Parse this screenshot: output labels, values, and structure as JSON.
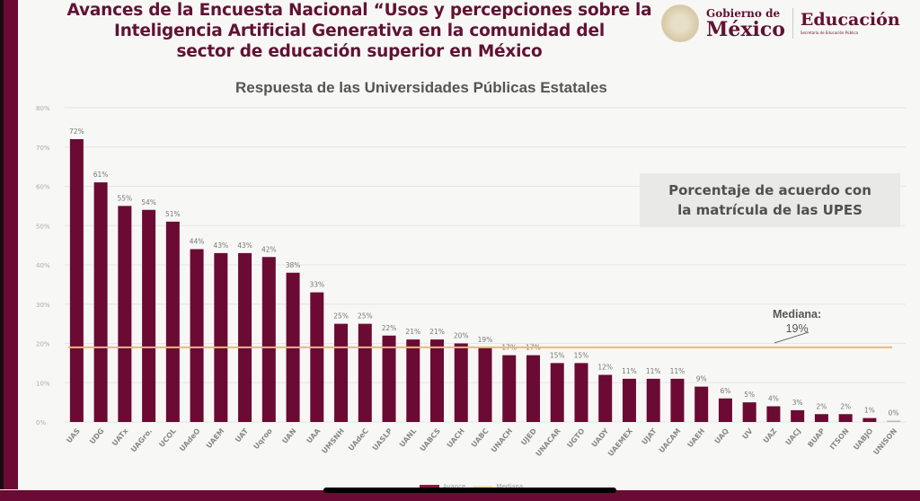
{
  "slide": {
    "title": "Avances de la Encuesta Nacional “Usos y percepciones sobre la Inteligencia Artificial Generativa en la comunidad del sector de educación superior en México",
    "title_lines": [
      "Avances de la Encuesta Nacional “Usos y percepciones sobre la",
      "Inteligencia Artificial Generativa en la comunidad del",
      "sector de educación superior en México"
    ]
  },
  "logos": {
    "gobierno_line1": "Gobierno de",
    "gobierno_line2": "México",
    "educacion": "Educación",
    "educacion_sub": "Secretaría de Educación Pública",
    "seal_icon": "coat-of-arms-icon"
  },
  "note": {
    "line1": "Porcentaje de acuerdo con",
    "line2": "la matrícula de las UPES"
  },
  "median": {
    "label": "Mediana:",
    "value_label": "19%"
  },
  "colors": {
    "bar": "#6b0a32",
    "median_line": "#e8b97a",
    "brand": "#611232"
  },
  "chart_data": {
    "type": "bar",
    "title": "Respuesta de las Universidades Públicas Estatales",
    "xlabel": "",
    "ylabel": "",
    "ylim": [
      0,
      80
    ],
    "yticks": [
      0,
      10,
      20,
      30,
      40,
      50,
      60,
      70,
      80
    ],
    "ytick_labels": [
      "0%",
      "10%",
      "20%",
      "30%",
      "40%",
      "50%",
      "60%",
      "70%",
      "80%"
    ],
    "grid": true,
    "categories": [
      "UAS",
      "UDG",
      "UATx",
      "UAGro.",
      "UCOL",
      "UAdeO",
      "UAEM",
      "UAT",
      "Uqroo",
      "UAN",
      "UAA",
      "UMSNH",
      "UAdeC",
      "UASLP",
      "UANL",
      "UABCS",
      "UACH",
      "UABC",
      "UNACH",
      "UJED",
      "UNACAR",
      "UGTO",
      "UADY",
      "UAEMEX",
      "UJAT",
      "UACAM",
      "UAEH",
      "UAQ",
      "UV",
      "UAZ",
      "UACJ",
      "BUAP",
      "ITSON",
      "UABJO",
      "UNISON"
    ],
    "series": [
      {
        "name": "Avance",
        "values": [
          72,
          61,
          55,
          54,
          51,
          44,
          43,
          43,
          42,
          38,
          33,
          25,
          25,
          22,
          21,
          21,
          20,
          19,
          17,
          17,
          15,
          15,
          12,
          11,
          11,
          11,
          9,
          6,
          5,
          4,
          3,
          2,
          2,
          1,
          0
        ],
        "data_labels": [
          "72%",
          "61%",
          "55%",
          "54%",
          "51%",
          "44%",
          "43%",
          "43%",
          "42%",
          "38%",
          "33%",
          "25%",
          "25%",
          "22%",
          "21%",
          "21%",
          "20%",
          "19%",
          "17%",
          "17%",
          "15%",
          "15%",
          "12%",
          "11%",
          "11%",
          "11%",
          "9%",
          "6%",
          "5%",
          "4%",
          "3%",
          "2%",
          "2%",
          "1%",
          "0%"
        ]
      }
    ],
    "reference_lines": [
      {
        "name": "Mediana",
        "value": 19
      }
    ],
    "legend": {
      "entries": [
        "Avance",
        "Mediana"
      ],
      "placement": "bottom"
    }
  }
}
